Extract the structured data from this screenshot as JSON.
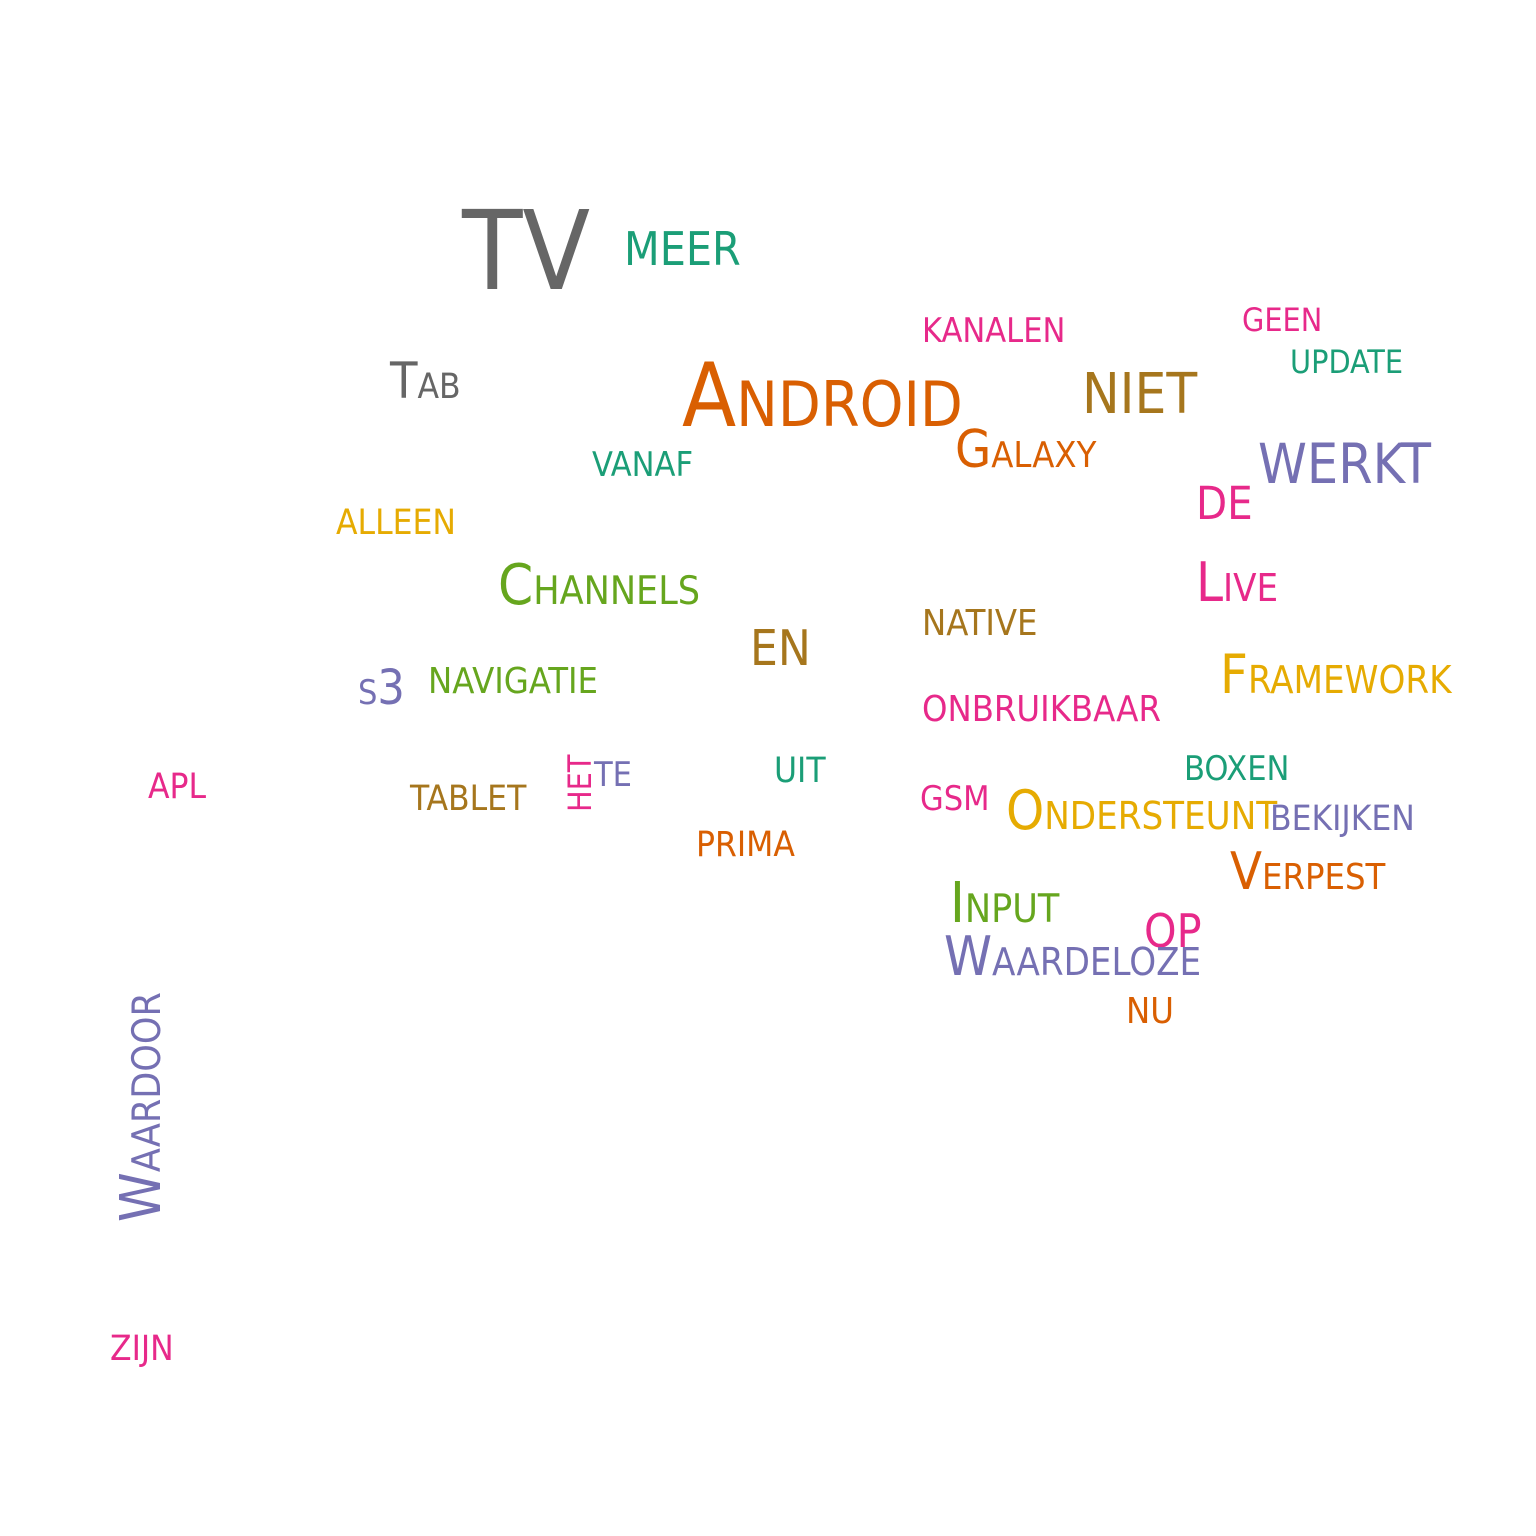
{
  "colors": {
    "gray": "#666666",
    "teal": "#1b9e77",
    "orange": "#d95f02",
    "purple": "#7570b3",
    "pink": "#e7298a",
    "green": "#66a61e",
    "yellow": "#e6ab02",
    "brown": "#a6761d"
  },
  "words": [
    {
      "text": "TV",
      "color": "gray"
    },
    {
      "text": "meer",
      "color": "teal"
    },
    {
      "text": "kanalen",
      "color": "pink"
    },
    {
      "text": "geen",
      "color": "pink"
    },
    {
      "text": "update",
      "color": "teal"
    },
    {
      "text": "Tab",
      "color": "gray"
    },
    {
      "text": "Android",
      "color": "orange"
    },
    {
      "text": "niet",
      "color": "brown"
    },
    {
      "text": "vanaf",
      "color": "teal"
    },
    {
      "text": "Galaxy",
      "color": "orange"
    },
    {
      "text": "werkt",
      "color": "purple"
    },
    {
      "text": "de",
      "color": "pink"
    },
    {
      "text": "alleen",
      "color": "yellow"
    },
    {
      "text": "Channels",
      "color": "green"
    },
    {
      "text": "Live",
      "color": "pink"
    },
    {
      "text": "en",
      "color": "brown"
    },
    {
      "text": "native",
      "color": "brown"
    },
    {
      "text": "s3",
      "color": "purple"
    },
    {
      "text": "navigatie",
      "color": "green"
    },
    {
      "text": "Framework",
      "color": "yellow"
    },
    {
      "text": "onbruikbaar",
      "color": "pink"
    },
    {
      "text": "apl",
      "color": "pink"
    },
    {
      "text": "tablet",
      "color": "brown"
    },
    {
      "text": "het",
      "color": "pink"
    },
    {
      "text": "te",
      "color": "purple"
    },
    {
      "text": "uit",
      "color": "teal"
    },
    {
      "text": "gsm",
      "color": "pink"
    },
    {
      "text": "boxen",
      "color": "teal"
    },
    {
      "text": "Ondersteunt",
      "color": "yellow"
    },
    {
      "text": "bekijken",
      "color": "purple"
    },
    {
      "text": "prima",
      "color": "orange"
    },
    {
      "text": "Verpest",
      "color": "orange"
    },
    {
      "text": "Input",
      "color": "green"
    },
    {
      "text": "op",
      "color": "pink"
    },
    {
      "text": "Waardeloze",
      "color": "purple"
    },
    {
      "text": "nu",
      "color": "orange"
    },
    {
      "text": "Waardoor",
      "color": "purple"
    },
    {
      "text": "zijn",
      "color": "pink"
    }
  ]
}
